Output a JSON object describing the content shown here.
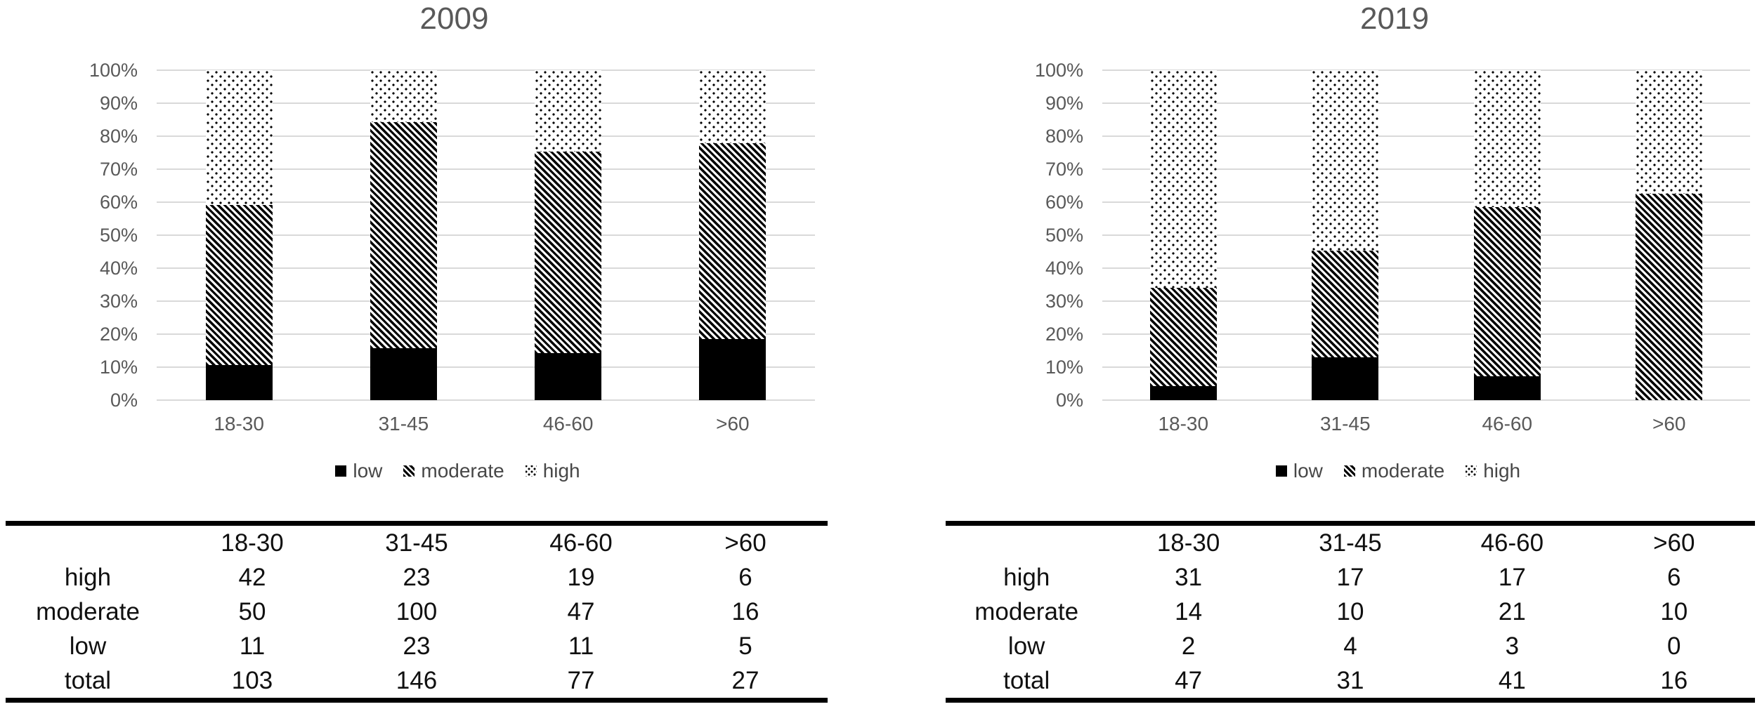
{
  "figure": {
    "background": "#ffffff"
  },
  "axis": {
    "tick_labels": [
      "100%",
      "90%",
      "80%",
      "70%",
      "60%",
      "50%",
      "40%",
      "30%",
      "20%",
      "10%",
      "0%"
    ]
  },
  "chart_data": [
    {
      "type": "bar",
      "stacked": true,
      "percent": true,
      "title": "2009",
      "categories": [
        "18-30",
        "31-45",
        "46-60",
        ">60"
      ],
      "series": [
        {
          "name": "low",
          "pattern": "solid-black",
          "values": [
            11,
            23,
            11,
            5
          ]
        },
        {
          "name": "moderate",
          "pattern": "diagonal-stripes",
          "values": [
            50,
            100,
            47,
            16
          ]
        },
        {
          "name": "high",
          "pattern": "dots",
          "values": [
            42,
            23,
            19,
            6
          ]
        }
      ],
      "totals": [
        103,
        146,
        77,
        27
      ],
      "xlabel": "",
      "ylabel": "",
      "ylim": [
        "0%",
        "100%"
      ],
      "gridlines": true,
      "legend_position": "bottom"
    },
    {
      "type": "bar",
      "stacked": true,
      "percent": true,
      "title": "2019",
      "categories": [
        "18-30",
        "31-45",
        "46-60",
        ">60"
      ],
      "series": [
        {
          "name": "low",
          "pattern": "solid-black",
          "values": [
            2,
            4,
            3,
            0
          ]
        },
        {
          "name": "moderate",
          "pattern": "diagonal-stripes",
          "values": [
            14,
            10,
            21,
            10
          ]
        },
        {
          "name": "high",
          "pattern": "dots",
          "values": [
            31,
            17,
            17,
            6
          ]
        }
      ],
      "totals": [
        47,
        31,
        41,
        16
      ],
      "xlabel": "",
      "ylabel": "",
      "ylim": [
        "0%",
        "100%"
      ],
      "gridlines": true,
      "legend_position": "bottom"
    }
  ],
  "tables": [
    {
      "headers": [
        "",
        "18-30",
        "31-45",
        "46-60",
        ">60"
      ],
      "rows": [
        [
          "high",
          "42",
          "23",
          "19",
          "6"
        ],
        [
          "moderate",
          "50",
          "100",
          "47",
          "16"
        ],
        [
          "low",
          "11",
          "23",
          "11",
          "5"
        ],
        [
          "total",
          "103",
          "146",
          "77",
          "27"
        ]
      ]
    },
    {
      "headers": [
        "",
        "18-30",
        "31-45",
        "46-60",
        ">60"
      ],
      "rows": [
        [
          "high",
          "31",
          "17",
          "17",
          "6"
        ],
        [
          "moderate",
          "14",
          "10",
          "21",
          "10"
        ],
        [
          "low",
          "2",
          "4",
          "3",
          "0"
        ],
        [
          "total",
          "47",
          "31",
          "41",
          "16"
        ]
      ]
    }
  ],
  "colors": {
    "title_text": "#595959",
    "axis_text": "#595959",
    "legend_text": "#474747",
    "gridline": "#d9d9d9",
    "pattern_black": "#000000",
    "table_text": "#101010",
    "table_border": "#000000"
  }
}
